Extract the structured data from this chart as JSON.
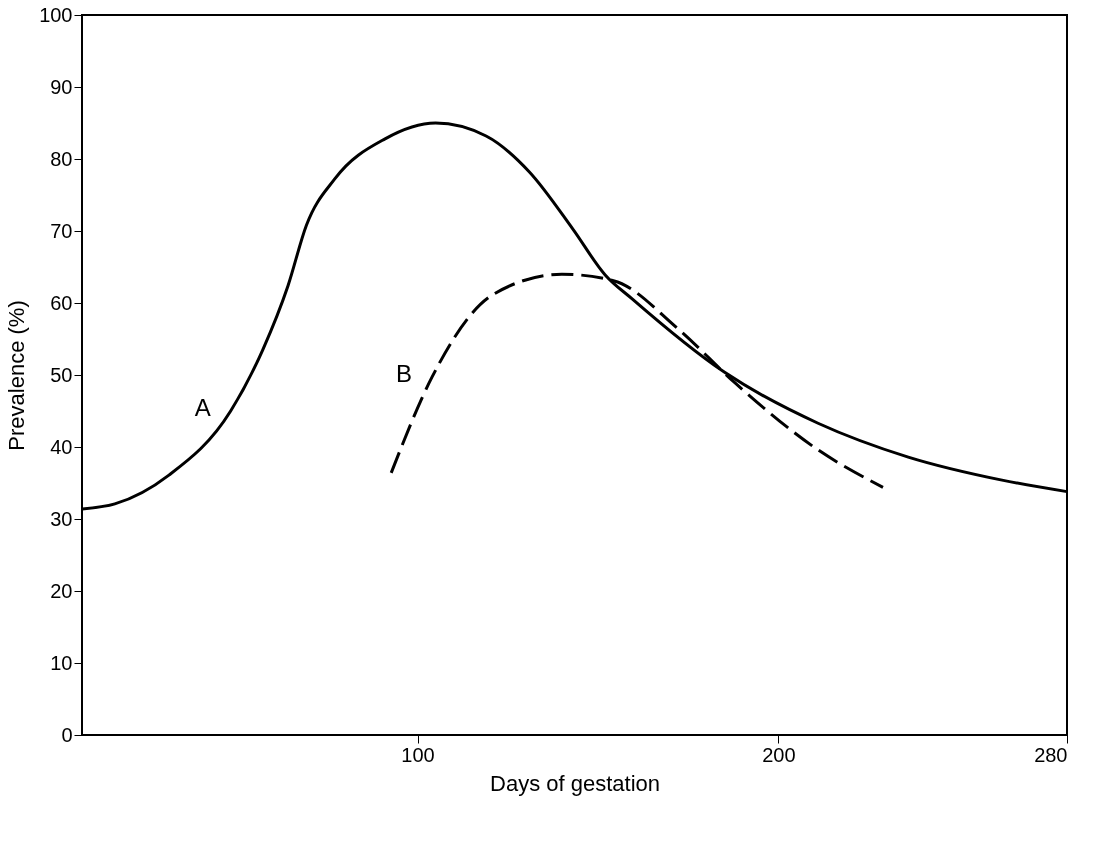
{
  "chart_data": {
    "type": "line",
    "xlabel": "Days of gestation",
    "ylabel": "Prevalence (%)",
    "xlim": [
      7,
      280
    ],
    "xticks": [
      100,
      200,
      280
    ],
    "ylim": [
      0,
      100
    ],
    "yticks": [
      0,
      10,
      20,
      30,
      40,
      50,
      60,
      70,
      80,
      90,
      100
    ],
    "grid": false,
    "marker": "none",
    "series": [
      {
        "name": "A",
        "color": "#000000",
        "line_style": "solid",
        "x": [
          7.1,
          16.1,
          31.1,
          48.2,
          57.1,
          64.1,
          69.2,
          77,
          91,
          105,
          119,
          131,
          143,
          152,
          159.4,
          185,
          211,
          236,
          262,
          280
        ],
        "values": [
          31.4,
          32.1,
          36.1,
          45,
          53.5,
          62.4,
          70.8,
          77.2,
          82.8,
          85,
          83.2,
          78.2,
          70.3,
          63.9,
          60.6,
          50.4,
          43.3,
          38.6,
          35.4,
          33.8
        ]
      },
      {
        "name": "B",
        "color": "#000000",
        "line_style": "dashed",
        "x": [
          92.7,
          104,
          121,
          140,
          154.3,
          172,
          188,
          211,
          229
        ],
        "values": [
          36.4,
          49.7,
          61.2,
          64,
          63.1,
          56.5,
          48.9,
          39.6,
          34.4
        ]
      }
    ]
  }
}
